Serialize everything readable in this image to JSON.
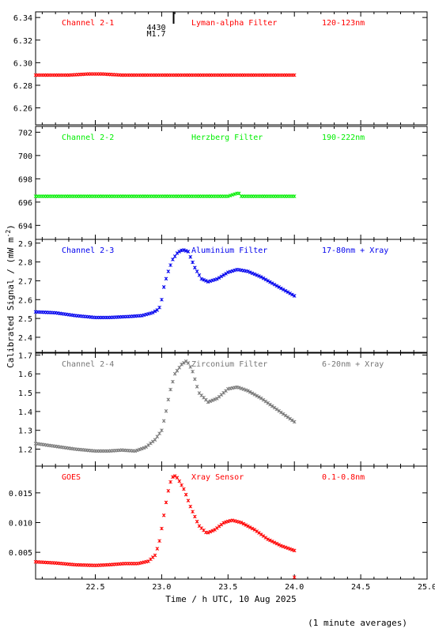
{
  "page": {
    "ylabel_main": "Calibrated Signal / (mW m",
    "ylabel_sup": "-2",
    "ylabel_end": ")",
    "xlabel": "Time / h UTC, 10 Aug 2025",
    "footnote": "(1 minute averages)",
    "flare_marker": {
      "time_label": "4430",
      "class_label": "M1.7",
      "x": 23.09
    }
  },
  "chart_data": [
    {
      "type": "scatter",
      "name": "Channel 2-1",
      "filter": "Lyman-alpha Filter",
      "range": "120-123nm",
      "color": "#ff0000",
      "ylim": [
        6.245,
        6.345
      ],
      "yticks": [
        "6.34",
        "6.32",
        "6.30",
        "6.28",
        "6.26"
      ],
      "ytick_values": [
        6.34,
        6.32,
        6.3,
        6.28,
        6.26
      ],
      "xlim": [
        22.05,
        25.0
      ],
      "points": [
        [
          22.05,
          6.289
        ],
        [
          22.3,
          6.289
        ],
        [
          22.45,
          6.29
        ],
        [
          22.55,
          6.29
        ],
        [
          22.7,
          6.289
        ],
        [
          23.0,
          6.289
        ],
        [
          23.3,
          6.289
        ],
        [
          23.6,
          6.289
        ],
        [
          24.0,
          6.289
        ]
      ]
    },
    {
      "type": "scatter",
      "name": "Channel 2-2",
      "filter": "Herzberg Filter",
      "range": "190-222nm",
      "color": "#00ee00",
      "ylim": [
        692.8,
        702.5
      ],
      "yticks": [
        "702",
        "700",
        "698",
        "696",
        "694"
      ],
      "ytick_values": [
        702,
        700,
        698,
        696,
        694
      ],
      "xlim": [
        22.05,
        25.0
      ],
      "points": [
        [
          22.05,
          696.5
        ],
        [
          22.5,
          696.5
        ],
        [
          23.0,
          696.5
        ],
        [
          23.5,
          696.5
        ],
        [
          23.58,
          696.8
        ],
        [
          23.6,
          696.5
        ],
        [
          24.0,
          696.5
        ]
      ]
    },
    {
      "type": "scatter",
      "name": "Channel 2-3",
      "filter": "Aluminium Filter",
      "range": "17-80nm + Xray",
      "color": "#0000ee",
      "ylim": [
        2.32,
        2.92
      ],
      "yticks": [
        "2.9",
        "2.8",
        "2.7",
        "2.6",
        "2.5",
        "2.4"
      ],
      "ytick_values": [
        2.9,
        2.8,
        2.7,
        2.6,
        2.5,
        2.4
      ],
      "xlim": [
        22.05,
        25.0
      ],
      "points": [
        [
          22.05,
          2.535
        ],
        [
          22.2,
          2.53
        ],
        [
          22.35,
          2.515
        ],
        [
          22.5,
          2.505
        ],
        [
          22.6,
          2.505
        ],
        [
          22.75,
          2.51
        ],
        [
          22.85,
          2.515
        ],
        [
          22.93,
          2.53
        ],
        [
          22.98,
          2.55
        ],
        [
          23.0,
          2.6
        ],
        [
          23.02,
          2.68
        ],
        [
          23.05,
          2.75
        ],
        [
          23.08,
          2.81
        ],
        [
          23.12,
          2.85
        ],
        [
          23.16,
          2.865
        ],
        [
          23.2,
          2.855
        ],
        [
          23.25,
          2.77
        ],
        [
          23.3,
          2.71
        ],
        [
          23.35,
          2.695
        ],
        [
          23.42,
          2.71
        ],
        [
          23.5,
          2.745
        ],
        [
          23.57,
          2.76
        ],
        [
          23.65,
          2.75
        ],
        [
          23.75,
          2.72
        ],
        [
          23.85,
          2.68
        ],
        [
          23.95,
          2.64
        ],
        [
          24.0,
          2.62
        ]
      ]
    },
    {
      "type": "scatter",
      "name": "Channel 2-4",
      "filter": "Zirconium Filter",
      "range": "6-20nm + Xray",
      "color": "#777777",
      "ylim": [
        1.11,
        1.71
      ],
      "yticks": [
        "1.7",
        "1.6",
        "1.5",
        "1.4",
        "1.3",
        "1.2"
      ],
      "ytick_values": [
        1.7,
        1.6,
        1.5,
        1.4,
        1.3,
        1.2
      ],
      "xlim": [
        22.05,
        25.0
      ],
      "points": [
        [
          22.05,
          1.23
        ],
        [
          22.2,
          1.215
        ],
        [
          22.35,
          1.2
        ],
        [
          22.5,
          1.19
        ],
        [
          22.6,
          1.19
        ],
        [
          22.7,
          1.195
        ],
        [
          22.8,
          1.19
        ],
        [
          22.88,
          1.21
        ],
        [
          22.95,
          1.25
        ],
        [
          23.0,
          1.3
        ],
        [
          23.03,
          1.39
        ],
        [
          23.06,
          1.5
        ],
        [
          23.1,
          1.6
        ],
        [
          23.15,
          1.65
        ],
        [
          23.19,
          1.67
        ],
        [
          23.23,
          1.62
        ],
        [
          23.28,
          1.5
        ],
        [
          23.35,
          1.45
        ],
        [
          23.42,
          1.47
        ],
        [
          23.5,
          1.52
        ],
        [
          23.57,
          1.53
        ],
        [
          23.65,
          1.51
        ],
        [
          23.75,
          1.47
        ],
        [
          23.85,
          1.42
        ],
        [
          23.95,
          1.37
        ],
        [
          24.0,
          1.345
        ]
      ]
    },
    {
      "type": "scatter",
      "name": "GOES",
      "filter": "Xray Sensor",
      "range": "0.1-0.8nm",
      "color": "#ff0000",
      "ylim": [
        0.0005,
        0.0195
      ],
      "yticks": [
        "0.015",
        "0.010",
        "0.005"
      ],
      "ytick_values": [
        0.015,
        0.01,
        0.005
      ],
      "xlim": [
        22.05,
        25.0
      ],
      "points": [
        [
          22.05,
          0.0034
        ],
        [
          22.2,
          0.0032
        ],
        [
          22.35,
          0.0029
        ],
        [
          22.5,
          0.0028
        ],
        [
          22.6,
          0.0029
        ],
        [
          22.72,
          0.0031
        ],
        [
          22.82,
          0.0031
        ],
        [
          22.9,
          0.0035
        ],
        [
          22.95,
          0.0045
        ],
        [
          22.98,
          0.0065
        ],
        [
          23.0,
          0.009
        ],
        [
          23.03,
          0.013
        ],
        [
          23.06,
          0.0165
        ],
        [
          23.09,
          0.018
        ],
        [
          23.12,
          0.0175
        ],
        [
          23.17,
          0.0155
        ],
        [
          23.22,
          0.0125
        ],
        [
          23.28,
          0.0095
        ],
        [
          23.34,
          0.0082
        ],
        [
          23.4,
          0.0088
        ],
        [
          23.47,
          0.01
        ],
        [
          23.53,
          0.0104
        ],
        [
          23.6,
          0.01
        ],
        [
          23.7,
          0.0088
        ],
        [
          23.8,
          0.0072
        ],
        [
          23.9,
          0.0061
        ],
        [
          24.0,
          0.0053
        ]
      ],
      "outliers": [
        [
          24.0,
          0.0008
        ]
      ]
    }
  ],
  "xaxis": {
    "ticks": [
      "22.5",
      "23.0",
      "23.5",
      "24.0",
      "24.5",
      "25.0"
    ],
    "tick_values": [
      22.5,
      23.0,
      23.5,
      24.0,
      24.5,
      25.0
    ],
    "xlim": [
      22.05,
      25.0
    ]
  }
}
